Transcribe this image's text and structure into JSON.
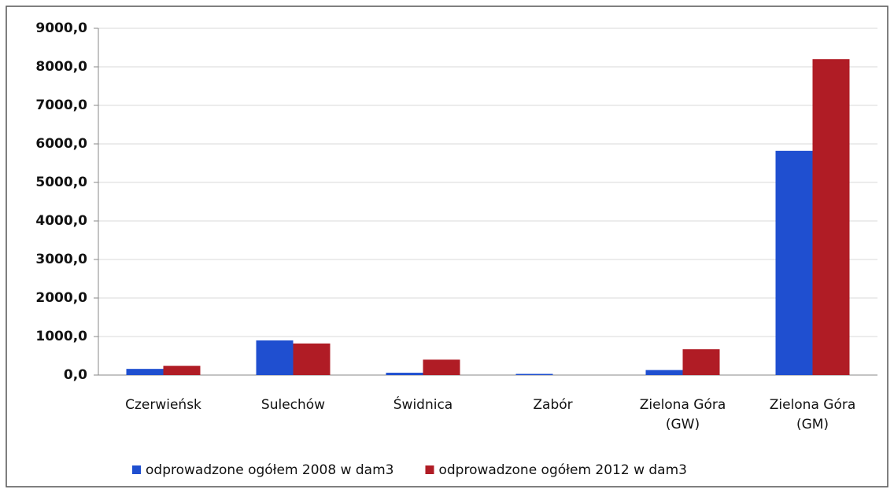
{
  "chart_data": {
    "type": "bar",
    "categories": [
      "Czerwieńsk",
      "Sulechów",
      "Świdnica",
      "Zabór",
      "Zielona Góra (GW)",
      "Zielona Góra (GM)"
    ],
    "series": [
      {
        "name": "odprowadzone ogółem 2008 w dam3",
        "color": "#1f4fd0",
        "values": [
          160,
          900,
          60,
          30,
          130,
          5820
        ]
      },
      {
        "name": "odprowadzone ogółem 2012 w dam3",
        "color": "#b01c25",
        "values": [
          240,
          820,
          400,
          0,
          670,
          8200
        ]
      }
    ],
    "ylim": [
      0,
      9000
    ],
    "yticks": [
      {
        "value": 0,
        "label": "0,0"
      },
      {
        "value": 1000,
        "label": "1000,0"
      },
      {
        "value": 2000,
        "label": "2000,0"
      },
      {
        "value": 3000,
        "label": "3000,0"
      },
      {
        "value": 4000,
        "label": "4000,0"
      },
      {
        "value": 5000,
        "label": "5000,0"
      },
      {
        "value": 6000,
        "label": "6000,0"
      },
      {
        "value": 7000,
        "label": "7000,0"
      },
      {
        "value": 8000,
        "label": "8000,0"
      },
      {
        "value": 9000,
        "label": "9000,0"
      }
    ],
    "grid": true,
    "legend": "bottom"
  }
}
